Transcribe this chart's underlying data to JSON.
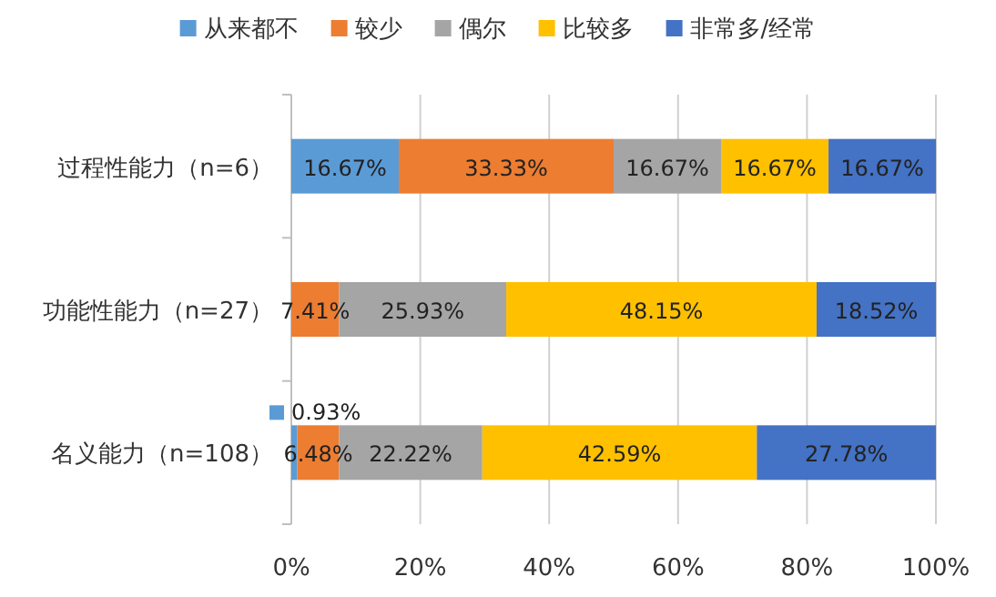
{
  "chart_data": {
    "type": "bar",
    "orientation": "horizontal",
    "stacked": true,
    "categories": [
      "过程性能力（n=6）",
      "功能性能力（n=27）",
      "名义能力（n=108）"
    ],
    "series": [
      {
        "name": "从来都不",
        "color": "#5b9bd5",
        "values": [
          16.67,
          0,
          0.93
        ],
        "value_labels": [
          "16.67%",
          null,
          "0.93%"
        ]
      },
      {
        "name": "较少",
        "color": "#ed7d31",
        "values": [
          33.33,
          7.41,
          6.48
        ],
        "value_labels": [
          "33.33%",
          "7.41%",
          "6.48%"
        ]
      },
      {
        "name": "偶尔",
        "color": "#a5a5a5",
        "values": [
          16.67,
          25.93,
          22.22
        ],
        "value_labels": [
          "16.67%",
          "25.93%",
          "22.22%"
        ]
      },
      {
        "name": "比较多",
        "color": "#ffc000",
        "values": [
          16.67,
          48.15,
          42.59
        ],
        "value_labels": [
          "16.67%",
          "48.15%",
          "42.59%"
        ]
      },
      {
        "name": "非常多/经常",
        "color": "#4472c4",
        "values": [
          16.67,
          18.52,
          27.78
        ],
        "value_labels": [
          "16.67%",
          "18.52%",
          "27.78%"
        ]
      }
    ],
    "xlim": [
      0,
      100
    ],
    "xticks": [
      {
        "value": 0,
        "label": "0%"
      },
      {
        "value": 20,
        "label": "20%"
      },
      {
        "value": 40,
        "label": "40%"
      },
      {
        "value": 60,
        "label": "60%"
      },
      {
        "value": 80,
        "label": "80%"
      },
      {
        "value": 100,
        "label": "100%"
      }
    ],
    "grid": "x",
    "legend": "top"
  }
}
